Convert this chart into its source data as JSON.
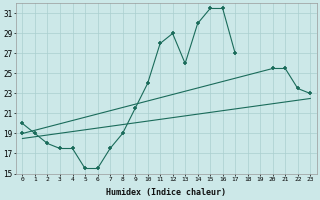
{
  "xlabel": "Humidex (Indice chaleur)",
  "bg_color": "#cce8e8",
  "grid_color": "#aacfcf",
  "line_color": "#1a6b5a",
  "xlim": [
    -0.5,
    23.5
  ],
  "ylim": [
    15,
    32
  ],
  "yticks": [
    15,
    17,
    19,
    21,
    23,
    25,
    27,
    29,
    31
  ],
  "xticks": [
    0,
    1,
    2,
    3,
    4,
    5,
    6,
    7,
    8,
    9,
    10,
    11,
    12,
    13,
    14,
    15,
    16,
    17,
    18,
    19,
    20,
    21,
    22,
    23
  ],
  "line1_x": [
    0,
    1,
    2,
    3,
    4,
    5,
    6,
    7,
    8,
    9,
    10,
    11,
    12,
    13,
    14,
    15,
    16,
    17
  ],
  "line1_y": [
    20.0,
    19.0,
    18.0,
    17.5,
    17.5,
    15.5,
    15.5,
    17.5,
    19.0,
    21.5,
    24.0,
    28.0,
    29.0,
    26.0,
    30.0,
    31.5,
    31.5,
    27.0
  ],
  "line2_x": [
    0,
    20,
    21,
    22,
    23
  ],
  "line2_y": [
    19.0,
    25.5,
    25.5,
    23.5,
    23.0
  ],
  "line3_x": [
    0,
    23
  ],
  "line3_y": [
    18.5,
    22.5
  ]
}
